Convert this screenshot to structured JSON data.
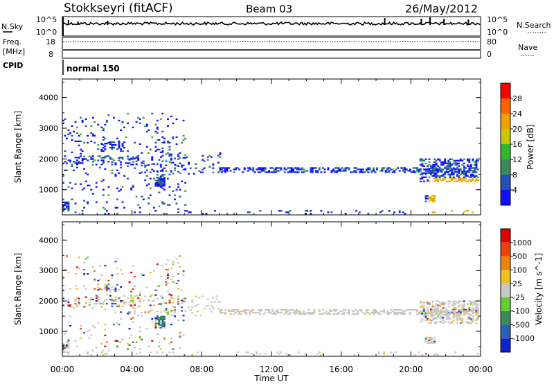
{
  "header": {
    "station": "Stokkseyri (fitACF)",
    "beam": "Beam 03",
    "date": "26/May/2012"
  },
  "noise_panel": {
    "left_label": "N.Sky",
    "left_ticks": [
      "10^5",
      "10^0"
    ],
    "right_label": "N.Search",
    "right_ticks": [
      "10^5",
      "10^0"
    ]
  },
  "freq_panel": {
    "left_label_1": "Freq.",
    "left_label_2": "[MHz]",
    "left_ticks": [
      "18",
      "8"
    ],
    "right_label": "Nave",
    "right_ticks": [
      "80",
      "0"
    ]
  },
  "cpid_panel": {
    "label": "CPID",
    "mode": "normal 150"
  },
  "chart_data": [
    {
      "type": "heatmap",
      "name": "power",
      "ylabel": "Slant Range [km]",
      "yticks": [
        "1000",
        "2000",
        "3000",
        "4000"
      ],
      "ylim": [
        180,
        4600
      ],
      "xlim": [
        0,
        24
      ],
      "xticks": [
        "00:00",
        "04:00",
        "08:00",
        "12:00",
        "16:00",
        "20:00",
        "00:00"
      ],
      "colorbar": {
        "label": "Power [dB]",
        "ticks": [
          "4",
          "8",
          "12",
          "16",
          "20",
          "24",
          "28"
        ],
        "colors": [
          "#1010ff",
          "#2250b8",
          "#3a8a5a",
          "#2fb82f",
          "#c8c800",
          "#f0a000",
          "#ff6000",
          "#ff0000"
        ]
      },
      "bands": [
        {
          "t0": 0.0,
          "t1": 4.5,
          "r0": 1800,
          "r1": 2100,
          "density": 0.22
        },
        {
          "t0": 2.0,
          "t1": 3.6,
          "r0": 2300,
          "r1": 2550,
          "density": 0.22
        },
        {
          "t0": 3.8,
          "t1": 9.0,
          "r0": 1500,
          "r1": 2200,
          "density": 0.1
        },
        {
          "t0": 9.0,
          "t1": 23.9,
          "r0": 1550,
          "r1": 1700,
          "density": 0.5
        },
        {
          "t0": 20.5,
          "t1": 23.9,
          "r0": 1250,
          "r1": 2000,
          "density": 0.45
        },
        {
          "t0": 0.0,
          "t1": 23.9,
          "r0": 200,
          "r1": 320,
          "density": 0.07
        },
        {
          "t0": 0.0,
          "t1": 7.0,
          "r0": 350,
          "r1": 3500,
          "density": 0.05
        },
        {
          "t0": 5.3,
          "t1": 5.8,
          "r0": 1100,
          "r1": 1500,
          "density": 0.7
        },
        {
          "t0": 0.0,
          "t1": 0.4,
          "r0": 300,
          "r1": 600,
          "density": 0.7
        },
        {
          "t0": 20.8,
          "t1": 21.4,
          "r0": 600,
          "r1": 800,
          "density": 0.7
        }
      ]
    },
    {
      "type": "heatmap",
      "name": "velocity",
      "ylabel": "Slant Range [km]",
      "yticks": [
        "1000",
        "2000",
        "3000",
        "4000"
      ],
      "ylim": [
        180,
        4600
      ],
      "xlim": [
        0,
        24
      ],
      "xticks": [
        "00:00",
        "04:00",
        "08:00",
        "12:00",
        "16:00",
        "20:00",
        "00:00"
      ],
      "xlabel": "Time UT",
      "colorbar": {
        "label": "Velocity [m s^-1]",
        "ticks": [
          "1000",
          "500",
          "100",
          "25",
          "-25",
          "-100",
          "-500",
          "-1000"
        ],
        "colors": [
          "#1020d0",
          "#2a60b0",
          "#3a8a5a",
          "#60d030",
          "#c8c8c8",
          "#f0c020",
          "#f08010",
          "#f04010",
          "#e00000"
        ]
      },
      "bands": [
        {
          "t0": 0.0,
          "t1": 4.5,
          "r0": 1800,
          "r1": 2100,
          "density": 0.22
        },
        {
          "t0": 2.0,
          "t1": 3.6,
          "r0": 2300,
          "r1": 2550,
          "density": 0.22
        },
        {
          "t0": 3.8,
          "t1": 9.0,
          "r0": 1500,
          "r1": 2200,
          "density": 0.1
        },
        {
          "t0": 9.0,
          "t1": 23.9,
          "r0": 1550,
          "r1": 1700,
          "density": 0.5
        },
        {
          "t0": 20.5,
          "t1": 23.9,
          "r0": 1250,
          "r1": 2000,
          "density": 0.45
        },
        {
          "t0": 0.0,
          "t1": 23.9,
          "r0": 200,
          "r1": 320,
          "density": 0.07
        },
        {
          "t0": 0.0,
          "t1": 7.0,
          "r0": 350,
          "r1": 3500,
          "density": 0.05
        },
        {
          "t0": 5.3,
          "t1": 5.8,
          "r0": 1100,
          "r1": 1500,
          "density": 0.7
        },
        {
          "t0": 0.0,
          "t1": 0.4,
          "r0": 300,
          "r1": 600,
          "density": 0.7
        },
        {
          "t0": 20.8,
          "t1": 21.4,
          "r0": 600,
          "r1": 800,
          "density": 0.7
        }
      ]
    }
  ]
}
